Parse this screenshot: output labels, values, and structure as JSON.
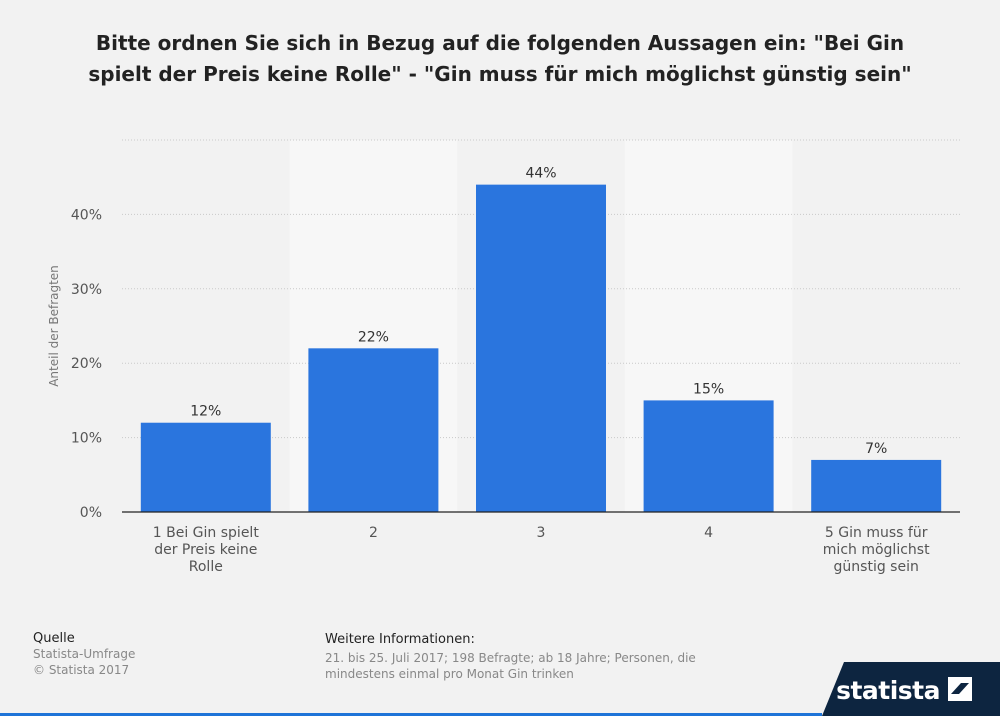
{
  "title": "Bitte ordnen Sie sich in Bezug auf die folgenden Aussagen ein: \"Bei Gin spielt der Preis keine Rolle\" - \"Gin muss für mich möglichst günstig sein\"",
  "chart_data": {
    "type": "bar",
    "categories": [
      [
        "1 Bei Gin spielt",
        "der Preis keine",
        "Rolle"
      ],
      [
        "2"
      ],
      [
        "3"
      ],
      [
        "4"
      ],
      [
        "5 Gin muss für",
        "mich möglichst",
        "günstig sein"
      ]
    ],
    "values": [
      12,
      22,
      44,
      15,
      7
    ],
    "value_labels": [
      "12%",
      "22%",
      "44%",
      "15%",
      "7%"
    ],
    "ylabel": "Anteil der Befragten",
    "yticks": [
      0,
      10,
      20,
      30,
      40
    ],
    "ytick_labels": [
      "0%",
      "10%",
      "20%",
      "30%",
      "40%"
    ],
    "ylim": [
      0,
      50
    ],
    "grid": true,
    "bar_color": "#2a75de"
  },
  "footer": {
    "source_heading": "Quelle",
    "source_lines": [
      "Statista-Umfrage",
      "© Statista 2017"
    ],
    "info_heading": "Weitere Informationen:",
    "info_lines": [
      "21. bis 25. Juli 2017; 198 Befragte; ab 18 Jahre; Personen, die",
      "mindestens einmal pro Monat Gin trinken"
    ]
  },
  "brand": {
    "name": "statista",
    "icon": "statista-logo-icon"
  }
}
